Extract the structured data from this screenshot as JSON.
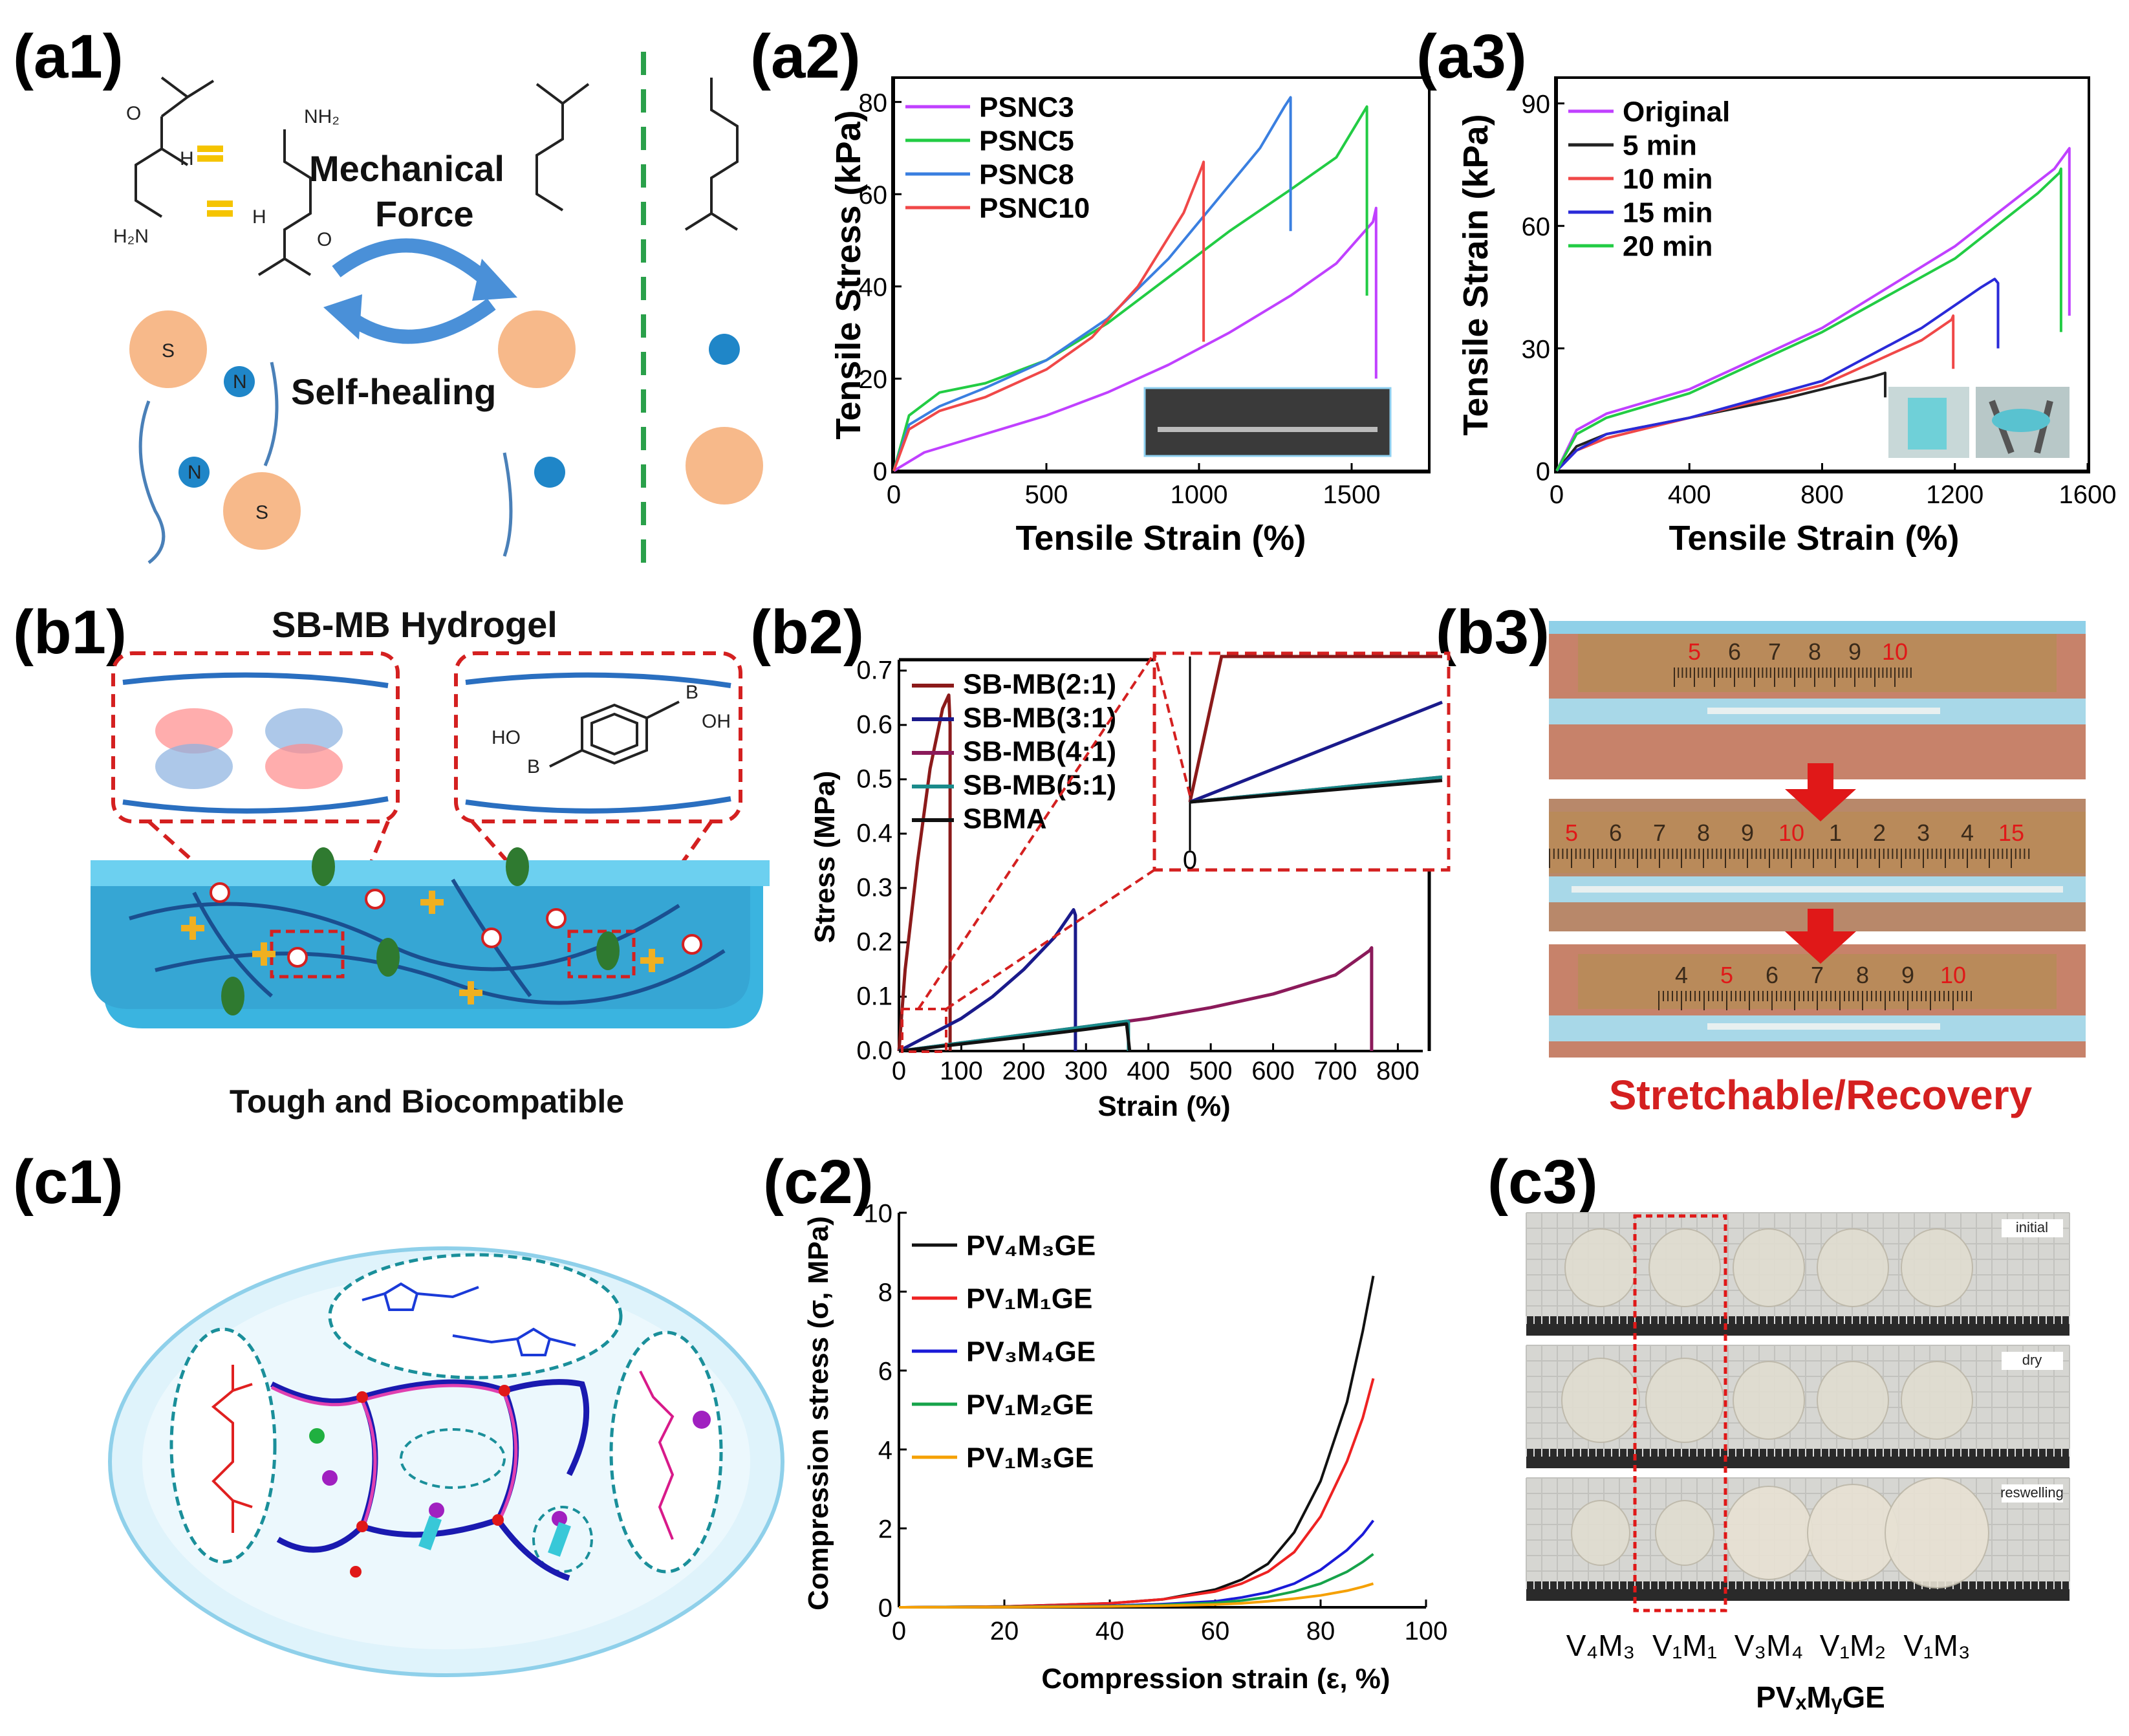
{
  "panels": {
    "a1": "(a1)",
    "a2": "(a2)",
    "a3": "(a3)",
    "b1": "(b1)",
    "b2": "(b2)",
    "b3": "(b3)",
    "c1": "(c1)",
    "c2": "(c2)",
    "c3": "(c3)"
  },
  "a1": {
    "mechanical_line1": "Mechanical",
    "mechanical_line2": "Force",
    "self_healing": "Self-healing",
    "chem": {
      "O": "O",
      "NH": "H",
      "N": "N",
      "NH2": "NH₂",
      "H2N": "H₂N",
      "S": "S"
    }
  },
  "b1": {
    "title": "SB-MB Hydrogel",
    "caption": "Tough and Biocompatible",
    "chem": {
      "HO": "HO",
      "B": "B",
      "OH": "OH"
    }
  },
  "b3": {
    "caption": "Stretchable/Recovery",
    "ruler1": [
      "5",
      "6",
      "7",
      "8",
      "9",
      "10"
    ],
    "ruler2": [
      "5",
      "6",
      "7",
      "8",
      "9",
      "10",
      "1",
      "2",
      "3",
      "4",
      "15"
    ],
    "ruler3": [
      "4",
      "5",
      "6",
      "7",
      "8",
      "9",
      "10"
    ]
  },
  "c3": {
    "labels": [
      "initial",
      "dry",
      "reswelling"
    ],
    "samples": [
      "V₄M₃",
      "V₁M₁",
      "V₃M₄",
      "V₁M₂",
      "V₁M₃"
    ],
    "xlabel": "PVₓMᵧGE"
  },
  "chart_data": [
    {
      "id": "a2",
      "type": "line",
      "xlabel": "Tensile Strain (%)",
      "ylabel": "Tensile Stress (kPa)",
      "xlim": [
        0,
        1750
      ],
      "ylim": [
        0,
        85
      ],
      "xticks": [
        0,
        500,
        1000,
        1500
      ],
      "yticks": [
        0,
        20,
        40,
        60,
        80
      ],
      "legend": "top-left",
      "series": [
        {
          "name": "PSNC3",
          "color": "#c040ff",
          "x": [
            0,
            100,
            300,
            500,
            700,
            900,
            1100,
            1300,
            1450,
            1570,
            1580,
            1580
          ],
          "y": [
            0,
            4,
            8,
            12,
            17,
            23,
            30,
            38,
            45,
            54,
            57,
            20
          ]
        },
        {
          "name": "PSNC5",
          "color": "#22cc44",
          "x": [
            0,
            50,
            150,
            300,
            500,
            700,
            900,
            1100,
            1300,
            1450,
            1550,
            1550
          ],
          "y": [
            0,
            12,
            17,
            19,
            24,
            32,
            42,
            52,
            61,
            68,
            79,
            38
          ]
        },
        {
          "name": "PSNC8",
          "color": "#3a7fe0",
          "x": [
            0,
            50,
            150,
            300,
            500,
            700,
            900,
            1050,
            1200,
            1280,
            1300,
            1300
          ],
          "y": [
            0,
            10,
            14,
            18,
            24,
            33,
            46,
            58,
            70,
            79,
            81,
            52
          ]
        },
        {
          "name": "PSNC10",
          "color": "#f04848",
          "x": [
            0,
            50,
            150,
            300,
            500,
            650,
            800,
            950,
            1010,
            1015,
            1015
          ],
          "y": [
            0,
            9,
            13,
            16,
            22,
            29,
            40,
            56,
            66,
            67,
            28
          ]
        }
      ]
    },
    {
      "id": "a3",
      "type": "line",
      "xlabel": "Tensile Strain (%)",
      "ylabel": "Tensile Strain (kPa)",
      "xlim": [
        0,
        1600
      ],
      "ylim": [
        0,
        96
      ],
      "xticks": [
        0,
        400,
        800,
        1200,
        1600
      ],
      "yticks": [
        0,
        30,
        60,
        90
      ],
      "legend": "top-left",
      "series": [
        {
          "name": "Original",
          "color": "#c040ff",
          "x": [
            0,
            60,
            150,
            400,
            800,
            1200,
            1500,
            1545,
            1545
          ],
          "y": [
            0,
            10,
            14,
            20,
            35,
            55,
            74,
            79,
            38
          ]
        },
        {
          "name": "5 min",
          "color": "#222222",
          "x": [
            0,
            60,
            150,
            400,
            700,
            950,
            990,
            990
          ],
          "y": [
            0,
            6,
            9,
            13,
            18,
            23,
            24,
            18
          ]
        },
        {
          "name": "10 min",
          "color": "#f04848",
          "x": [
            0,
            60,
            150,
            400,
            800,
            1100,
            1190,
            1195,
            1195
          ],
          "y": [
            0,
            5,
            8,
            13,
            21,
            32,
            37,
            38,
            25
          ]
        },
        {
          "name": "15 min",
          "color": "#2a2ad8",
          "x": [
            0,
            60,
            150,
            400,
            800,
            1100,
            1280,
            1320,
            1330,
            1330
          ],
          "y": [
            0,
            5,
            9,
            13,
            22,
            35,
            45,
            47,
            46,
            30
          ]
        },
        {
          "name": "20 min",
          "color": "#22cc44",
          "x": [
            0,
            60,
            150,
            400,
            800,
            1200,
            1450,
            1515,
            1520,
            1520
          ],
          "y": [
            0,
            9,
            13,
            19,
            34,
            52,
            68,
            73,
            74,
            34
          ]
        }
      ]
    },
    {
      "id": "b2",
      "type": "line",
      "xlabel": "Strain (%)",
      "ylabel": "Stress (MPa)",
      "xlim": [
        0,
        840
      ],
      "ylim": [
        0,
        0.72
      ],
      "xticks": [
        0,
        100,
        200,
        300,
        400,
        500,
        600,
        700,
        800
      ],
      "yticks": [
        0.0,
        0.1,
        0.2,
        0.3,
        0.4,
        0.5,
        0.6,
        0.7
      ],
      "legend": "top-left",
      "inset_tick": "0",
      "series": [
        {
          "name": "SB-MB(2:1)",
          "color": "#8b1a1a",
          "x": [
            0,
            10,
            30,
            50,
            70,
            80,
            82,
            82
          ],
          "y": [
            0,
            0.15,
            0.35,
            0.52,
            0.63,
            0.655,
            0.6,
            0.0
          ]
        },
        {
          "name": "SB-MB(3:1)",
          "color": "#1a1a8b",
          "x": [
            0,
            50,
            100,
            150,
            200,
            250,
            280,
            283,
            283
          ],
          "y": [
            0,
            0.03,
            0.06,
            0.1,
            0.15,
            0.21,
            0.26,
            0.25,
            0.0
          ]
        },
        {
          "name": "SB-MB(4:1)",
          "color": "#8b1a5a",
          "x": [
            0,
            100,
            200,
            300,
            400,
            500,
            600,
            700,
            755,
            758,
            758
          ],
          "y": [
            0,
            0.015,
            0.03,
            0.045,
            0.06,
            0.08,
            0.105,
            0.14,
            0.185,
            0.19,
            0.0
          ]
        },
        {
          "name": "SB-MB(5:1)",
          "color": "#1a8b8b",
          "x": [
            0,
            100,
            200,
            300,
            365,
            368,
            368
          ],
          "y": [
            0,
            0.015,
            0.03,
            0.045,
            0.055,
            0.054,
            0.0
          ]
        },
        {
          "name": "SBMA",
          "color": "#111111",
          "x": [
            0,
            100,
            200,
            300,
            365,
            370
          ],
          "y": [
            0,
            0.013,
            0.026,
            0.04,
            0.05,
            0.0
          ]
        }
      ]
    },
    {
      "id": "c2",
      "type": "line",
      "xlabel": "Compression strain (ε, %)",
      "ylabel": "Compression stress (σ, MPa)",
      "xlim": [
        0,
        100
      ],
      "ylim": [
        0,
        10
      ],
      "xticks": [
        0,
        20,
        40,
        60,
        80,
        100
      ],
      "yticks": [
        0,
        2,
        4,
        6,
        8,
        10
      ],
      "legend": "top-left",
      "series": [
        {
          "name": "PV₄M₃GE",
          "color": "#111111",
          "x": [
            0,
            20,
            40,
            50,
            60,
            65,
            70,
            75,
            80,
            85,
            88,
            90
          ],
          "y": [
            0,
            0.02,
            0.1,
            0.2,
            0.45,
            0.7,
            1.1,
            1.9,
            3.2,
            5.2,
            7.0,
            8.4
          ]
        },
        {
          "name": "PV₁M₁GE",
          "color": "#ee2222",
          "x": [
            0,
            20,
            40,
            50,
            60,
            65,
            70,
            75,
            80,
            85,
            88,
            90
          ],
          "y": [
            0,
            0.02,
            0.1,
            0.2,
            0.4,
            0.6,
            0.9,
            1.4,
            2.3,
            3.7,
            4.8,
            5.8
          ]
        },
        {
          "name": "PV₃M₄GE",
          "color": "#1a1ad8",
          "x": [
            0,
            20,
            40,
            50,
            60,
            65,
            70,
            75,
            80,
            85,
            88,
            90
          ],
          "y": [
            0,
            0.01,
            0.04,
            0.08,
            0.15,
            0.25,
            0.38,
            0.6,
            0.95,
            1.45,
            1.85,
            2.2
          ]
        },
        {
          "name": "PV₁M₂GE",
          "color": "#16a34a",
          "x": [
            0,
            20,
            40,
            50,
            60,
            65,
            70,
            75,
            80,
            85,
            88,
            90
          ],
          "y": [
            0,
            0.01,
            0.03,
            0.06,
            0.11,
            0.17,
            0.26,
            0.4,
            0.6,
            0.9,
            1.15,
            1.35
          ]
        },
        {
          "name": "PV₁M₃GE",
          "color": "#f5a000",
          "x": [
            0,
            20,
            40,
            50,
            60,
            65,
            70,
            75,
            80,
            85,
            88,
            90
          ],
          "y": [
            0,
            0.005,
            0.02,
            0.04,
            0.07,
            0.1,
            0.15,
            0.22,
            0.3,
            0.42,
            0.52,
            0.6
          ]
        }
      ]
    }
  ]
}
